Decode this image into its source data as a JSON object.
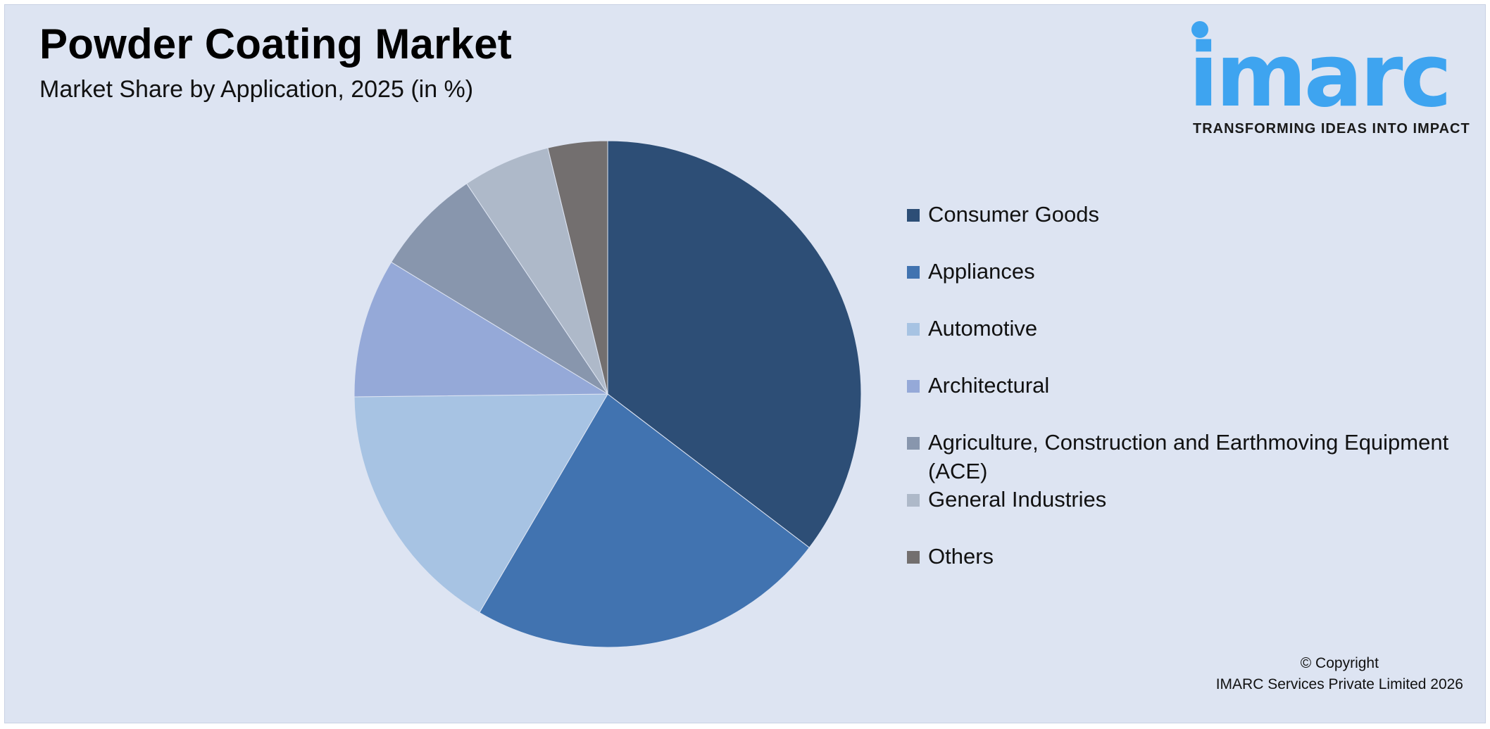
{
  "header": {
    "title": "Powder Coating Market",
    "subtitle": "Market Share by Application, 2025 (in %)"
  },
  "logo": {
    "wordmark": "imarc",
    "tagline": "TRANSFORMING IDEAS INTO IMPACT",
    "color": "#3ea4f0"
  },
  "chart_data": {
    "type": "pie",
    "title": "Powder Coating Market",
    "subtitle": "Market Share by Application, 2025 (in %)",
    "legend_position": "right",
    "slices": [
      {
        "label": "Consumer Goods",
        "value": 35.4,
        "color": "#2d4e76"
      },
      {
        "label": "Appliances",
        "value": 23.1,
        "color": "#4173b0"
      },
      {
        "label": "Automotive",
        "value": 16.4,
        "color": "#a7c3e3"
      },
      {
        "label": "Architectural",
        "value": 8.9,
        "color": "#95a9d8"
      },
      {
        "label": "Agriculture, Construction and Earthmoving Equipment (ACE)",
        "value": 6.9,
        "color": "#8896ad"
      },
      {
        "label": "General Industries",
        "value": 5.6,
        "color": "#aeb9c9"
      },
      {
        "label": "Others",
        "value": 3.8,
        "color": "#736f6f"
      }
    ]
  },
  "footer": {
    "copyright_line1": "© Copyright",
    "copyright_line2": "IMARC Services Private Limited 2026"
  },
  "colors": {
    "background": "#dde4f2",
    "accent": "#3ea4f0"
  }
}
